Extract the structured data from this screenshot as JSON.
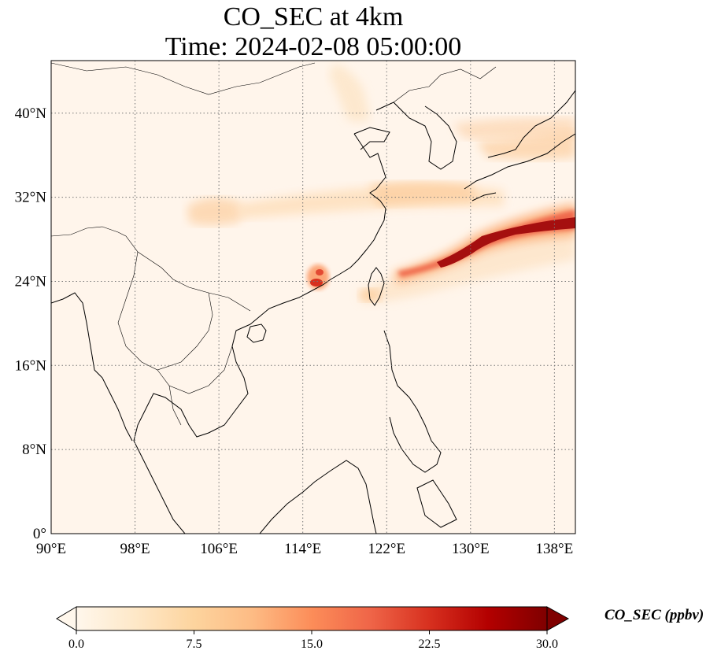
{
  "title": {
    "line1": "CO_SEC at 4km",
    "line2": "Time: 2024-02-08 05:00:00"
  },
  "map": {
    "lon_range": [
      90,
      140
    ],
    "lat_range": [
      0,
      45
    ],
    "lon_ticks": [
      {
        "value": 90,
        "label": "90°E"
      },
      {
        "value": 98,
        "label": "98°E"
      },
      {
        "value": 106,
        "label": "106°E"
      },
      {
        "value": 114,
        "label": "114°E"
      },
      {
        "value": 122,
        "label": "122°E"
      },
      {
        "value": 130,
        "label": "130°E"
      },
      {
        "value": 138,
        "label": "138°E"
      }
    ],
    "lat_ticks": [
      {
        "value": 0,
        "label": "0°"
      },
      {
        "value": 8,
        "label": "8°N"
      },
      {
        "value": 16,
        "label": "16°N"
      },
      {
        "value": 24,
        "label": "24°N"
      },
      {
        "value": 32,
        "label": "32°N"
      },
      {
        "value": 40,
        "label": "40°N"
      }
    ],
    "gridlines": true,
    "background_color": "#fff5eb",
    "coastline_color": "#000000",
    "colormap": "OrRd-like",
    "plumes": [
      {
        "name": "east-china-sea-plume",
        "lon": [
          123.5,
          140
        ],
        "lat": [
          23.5,
          31
        ],
        "value": 30
      },
      {
        "name": "taiwan-strait-hotspot",
        "lon": [
          115.4,
          116.6
        ],
        "lat": [
          23.2,
          25.8
        ],
        "value": 22
      },
      {
        "name": "yangtze-band",
        "lon": [
          116,
          132
        ],
        "lat": [
          30,
          33
        ],
        "value": 7
      },
      {
        "name": "sichuan-patch",
        "lon": [
          102,
          110
        ],
        "lat": [
          29,
          32
        ],
        "value": 6
      },
      {
        "name": "north-plume",
        "lon": [
          118,
          124
        ],
        "lat": [
          37,
          45
        ],
        "value": 5
      },
      {
        "name": "japan-band",
        "lon": [
          128,
          140
        ],
        "lat": [
          34,
          40
        ],
        "value": 6
      }
    ]
  },
  "colorbar": {
    "min": 0.0,
    "max": 30.0,
    "extend": "both",
    "ticks": [
      {
        "value": 0.0,
        "label": "0.0"
      },
      {
        "value": 7.5,
        "label": "7.5"
      },
      {
        "value": 15.0,
        "label": "15.0"
      },
      {
        "value": 22.5,
        "label": "22.5"
      },
      {
        "value": 30.0,
        "label": "30.0"
      }
    ],
    "label": "CO_SEC (ppbv)",
    "colors": [
      "#fff7ec",
      "#fee8c8",
      "#fdd49e",
      "#fdbb84",
      "#fc8d59",
      "#ef6548",
      "#d7301f",
      "#b30000",
      "#7f0000"
    ]
  }
}
